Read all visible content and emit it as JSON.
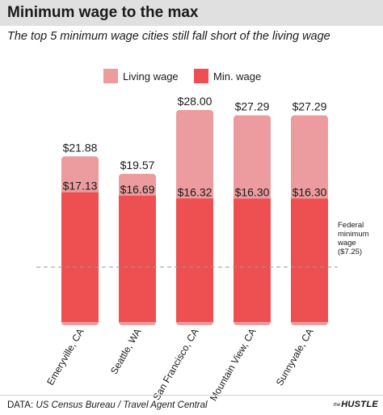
{
  "header": {
    "title": "Minimum wage to the max",
    "subtitle": "The top 5 minimum wage cities still fall short of the living wage"
  },
  "footer": {
    "source_prefix": "DATA:",
    "source_text": "US Census Bureau / Travel Agent Central",
    "logo_the": "the",
    "logo_name": "HUSTLE"
  },
  "colors": {
    "living": "#ec9c9e",
    "minimum": "#ee4f51",
    "reference": "#999999",
    "title_bar": "#e0e0e0"
  },
  "chart_data": {
    "type": "bar",
    "stacking": "overlay",
    "title": "",
    "xlabel": "",
    "ylabel": "",
    "ylim": [
      0,
      29.5
    ],
    "grid": false,
    "legend_position": "top-center",
    "categories": [
      "Emeryville, CA",
      "Seattle, WA",
      "San Francisco, CA",
      "Mountain View, CA",
      "Sunnyvale, CA"
    ],
    "series": [
      {
        "name": "Living wage",
        "values": [
          21.88,
          19.57,
          28.0,
          27.29,
          27.29
        ],
        "labels": [
          "$21.88",
          "$19.57",
          "$28.00",
          "$27.29",
          "$27.29"
        ]
      },
      {
        "name": "Min. wage",
        "values": [
          17.13,
          16.69,
          16.32,
          16.3,
          16.3
        ],
        "labels": [
          "$17.13",
          "$16.69",
          "$16.32",
          "$16.30",
          "$16.30"
        ]
      }
    ],
    "reference_line": {
      "value": 7.25,
      "label_lines": [
        "Federal",
        "minimum",
        "wage",
        "($7.25)"
      ]
    }
  }
}
